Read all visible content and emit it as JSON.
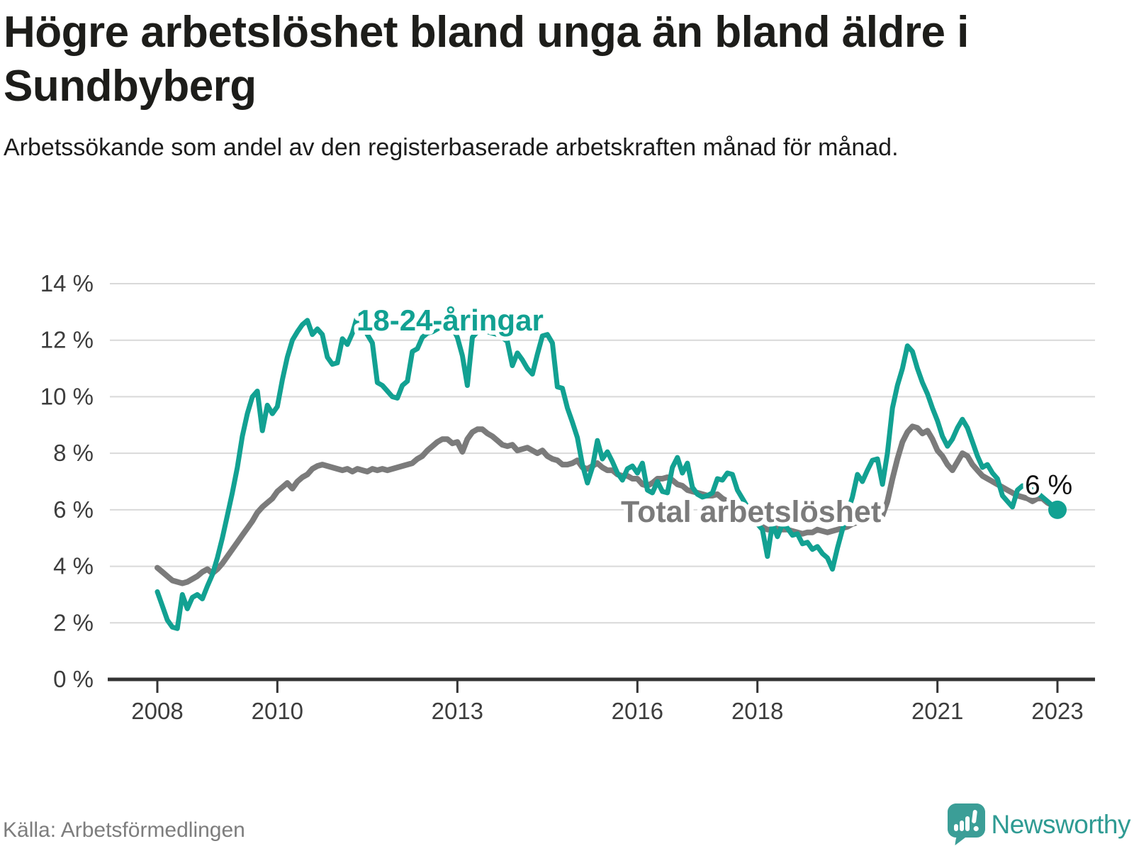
{
  "chart_data": {
    "type": "line",
    "title": "Högre arbetslöshet bland unga än bland äldre i Sundbyberg",
    "subtitle": "Arbetssökande som andel av den registerbaserade arbetskraften månad för månad.",
    "x_axis": {
      "unit": "month",
      "start": "2008-01",
      "end": "2023-01",
      "tick_years": [
        2008,
        2010,
        2013,
        2016,
        2018,
        2021,
        2023
      ],
      "tick_labels": [
        "2008",
        "2010",
        "2013",
        "2016",
        "2018",
        "2021",
        "2023"
      ]
    },
    "y_axis": {
      "ylim": [
        0,
        14
      ],
      "tick_values": [
        0,
        2,
        4,
        6,
        8,
        10,
        12,
        14
      ],
      "tick_labels": [
        "0 %",
        "2 %",
        "4 %",
        "6 %",
        "8 %",
        "10 %",
        "12 %",
        "14 %"
      ],
      "grid": true
    },
    "legend_position": "inline-labels",
    "annotation": {
      "label": "6 %",
      "value": 6,
      "series": "18-24-åringar"
    },
    "series": [
      {
        "name": "18-24-åringar",
        "color": "#12A192",
        "values": [
          3.1,
          2.6,
          2.1,
          1.85,
          1.8,
          3.0,
          2.5,
          2.9,
          3.0,
          2.85,
          3.3,
          3.7,
          4.3,
          5.0,
          5.8,
          6.6,
          7.5,
          8.6,
          9.4,
          10.0,
          10.2,
          8.8,
          9.7,
          9.4,
          9.65,
          10.6,
          11.4,
          12.0,
          12.3,
          12.55,
          12.7,
          12.2,
          12.4,
          12.2,
          11.4,
          11.15,
          11.2,
          12.05,
          11.85,
          12.25,
          12.85,
          12.55,
          12.2,
          11.9,
          10.5,
          10.4,
          10.2,
          10.0,
          9.95,
          10.4,
          10.55,
          11.6,
          11.7,
          12.1,
          12.25,
          12.3,
          12.4,
          12.5,
          12.55,
          12.45,
          12.1,
          11.45,
          10.4,
          12.1,
          12.3,
          12.35,
          12.3,
          12.25,
          12.2,
          12.1,
          11.95,
          11.1,
          11.55,
          11.3,
          11.0,
          10.8,
          11.5,
          12.15,
          12.2,
          11.9,
          10.35,
          10.3,
          9.6,
          9.1,
          8.55,
          7.6,
          6.95,
          7.5,
          8.45,
          7.8,
          8.05,
          7.7,
          7.3,
          7.05,
          7.45,
          7.55,
          7.3,
          7.65,
          6.7,
          6.6,
          7.0,
          6.65,
          6.6,
          7.5,
          7.85,
          7.3,
          7.65,
          6.8,
          6.55,
          6.45,
          6.5,
          6.6,
          7.1,
          7.05,
          7.3,
          7.25,
          6.7,
          6.4,
          6.1,
          5.8,
          5.5,
          5.3,
          4.35,
          5.5,
          5.05,
          5.5,
          5.35,
          5.1,
          5.15,
          4.8,
          4.85,
          4.6,
          4.7,
          4.45,
          4.3,
          3.9,
          4.65,
          5.3,
          5.9,
          6.45,
          7.25,
          7.0,
          7.4,
          7.75,
          7.8,
          6.9,
          8.0,
          9.6,
          10.4,
          11.0,
          11.8,
          11.6,
          11.0,
          10.5,
          10.1,
          9.6,
          9.15,
          8.6,
          8.25,
          8.5,
          8.9,
          9.2,
          8.9,
          8.4,
          7.9,
          7.5,
          7.6,
          7.3,
          7.1,
          6.5,
          6.3,
          6.1,
          6.7,
          6.85,
          6.8,
          6.75,
          6.6,
          6.45,
          6.3,
          6.15,
          6.0
        ]
      },
      {
        "name": "Total arbetslöshet",
        "color": "#7B7B7B",
        "values": [
          3.95,
          3.8,
          3.65,
          3.5,
          3.45,
          3.4,
          3.45,
          3.55,
          3.65,
          3.8,
          3.9,
          3.75,
          3.9,
          4.1,
          4.35,
          4.6,
          4.85,
          5.1,
          5.35,
          5.6,
          5.9,
          6.1,
          6.25,
          6.4,
          6.65,
          6.8,
          6.95,
          6.75,
          7.0,
          7.15,
          7.25,
          7.45,
          7.55,
          7.6,
          7.55,
          7.5,
          7.45,
          7.4,
          7.45,
          7.35,
          7.45,
          7.4,
          7.35,
          7.45,
          7.4,
          7.45,
          7.4,
          7.45,
          7.5,
          7.55,
          7.6,
          7.65,
          7.8,
          7.9,
          8.1,
          8.25,
          8.4,
          8.5,
          8.5,
          8.35,
          8.4,
          8.05,
          8.5,
          8.75,
          8.85,
          8.85,
          8.7,
          8.6,
          8.45,
          8.3,
          8.25,
          8.3,
          8.1,
          8.15,
          8.2,
          8.1,
          8.0,
          8.1,
          7.9,
          7.8,
          7.75,
          7.6,
          7.6,
          7.65,
          7.75,
          7.5,
          7.45,
          7.55,
          7.65,
          7.5,
          7.4,
          7.4,
          7.25,
          7.2,
          7.2,
          7.1,
          7.1,
          6.9,
          6.85,
          6.95,
          7.1,
          7.1,
          7.15,
          7.05,
          6.9,
          6.85,
          6.7,
          6.65,
          6.6,
          6.55,
          6.5,
          6.5,
          6.55,
          6.4,
          6.3,
          6.15,
          6.0,
          5.85,
          5.7,
          5.6,
          5.5,
          5.4,
          5.3,
          5.3,
          5.35,
          5.3,
          5.3,
          5.25,
          5.2,
          5.15,
          5.2,
          5.2,
          5.3,
          5.25,
          5.2,
          5.25,
          5.3,
          5.35,
          5.4,
          5.5,
          5.55,
          5.6,
          5.65,
          5.7,
          5.75,
          5.8,
          6.3,
          7.1,
          7.8,
          8.4,
          8.75,
          8.95,
          8.9,
          8.7,
          8.8,
          8.5,
          8.1,
          7.9,
          7.6,
          7.4,
          7.7,
          8.0,
          7.9,
          7.6,
          7.4,
          7.2,
          7.1,
          7.0,
          6.9,
          6.8,
          6.7,
          6.6,
          6.5,
          6.45,
          6.4,
          6.3,
          6.4,
          6.4,
          6.25,
          6.15,
          5.95
        ]
      }
    ]
  },
  "footer": {
    "source": "Källa: Arbetsförmedlingen",
    "brand": "Newsworthy"
  },
  "colors": {
    "young_line": "#12A192",
    "total_line": "#7B7B7B",
    "grid": "#d9d9d9",
    "axis": "#333333",
    "logo": "#3B9E97",
    "logo_text": "#2F9B93"
  }
}
